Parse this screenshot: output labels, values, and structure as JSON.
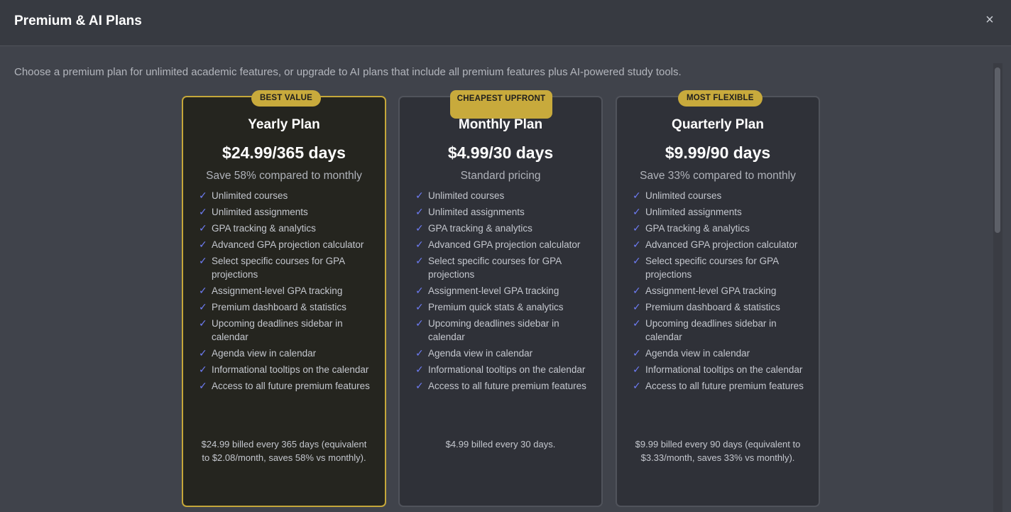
{
  "modal": {
    "title": "Premium & AI Plans",
    "close_glyph": "×",
    "intro": "Choose a premium plan for unlimited academic features, or upgrade to AI plans that include all premium features plus AI-powered study tools."
  },
  "colors": {
    "accent_gold": "#c8aa3c",
    "check_blue": "#6e7cf5",
    "card_bg": "#2f3138",
    "featured_bg": "#25251f"
  },
  "icons": {
    "check": "check-icon",
    "close": "close-icon"
  },
  "plans": [
    {
      "badge": "BEST VALUE",
      "name": "Yearly Plan",
      "price": "$24.99/365 days",
      "savings": "Save 58% compared to monthly",
      "check_glyph": "✓",
      "features": [
        "Unlimited courses",
        "Unlimited assignments",
        "GPA tracking & analytics",
        "Advanced GPA projection calculator",
        "Select specific courses for GPA projections",
        "Assignment-level GPA tracking",
        "Premium dashboard & statistics",
        "Upcoming deadlines sidebar in calendar",
        "Agenda view in calendar",
        "Informational tooltips on the calendar",
        "Access to all future premium features"
      ],
      "billing": "$24.99 billed every 365 days (equivalent to $2.08/month, saves 58% vs monthly)."
    },
    {
      "badge": "CHEAPEST UPFRONT",
      "name": "Monthly Plan",
      "price": "$4.99/30 days",
      "savings": "Standard pricing",
      "check_glyph": "✓",
      "features": [
        "Unlimited courses",
        "Unlimited assignments",
        "GPA tracking & analytics",
        "Advanced GPA projection calculator",
        "Select specific courses for GPA projections",
        "Assignment-level GPA tracking",
        "Premium quick stats & analytics",
        "Upcoming deadlines sidebar in calendar",
        "Agenda view in calendar",
        "Informational tooltips on the calendar",
        "Access to all future premium features"
      ],
      "billing": "$4.99 billed every 30 days."
    },
    {
      "badge": "MOST FLEXIBLE",
      "name": "Quarterly Plan",
      "price": "$9.99/90 days",
      "savings": "Save 33% compared to monthly",
      "check_glyph": "✓",
      "features": [
        "Unlimited courses",
        "Unlimited assignments",
        "GPA tracking & analytics",
        "Advanced GPA projection calculator",
        "Select specific courses for GPA projections",
        "Assignment-level GPA tracking",
        "Premium dashboard & statistics",
        "Upcoming deadlines sidebar in calendar",
        "Agenda view in calendar",
        "Informational tooltips on the calendar",
        "Access to all future premium features"
      ],
      "billing": "$9.99 billed every 90 days (equivalent to $3.33/month, saves 33% vs monthly)."
    }
  ]
}
